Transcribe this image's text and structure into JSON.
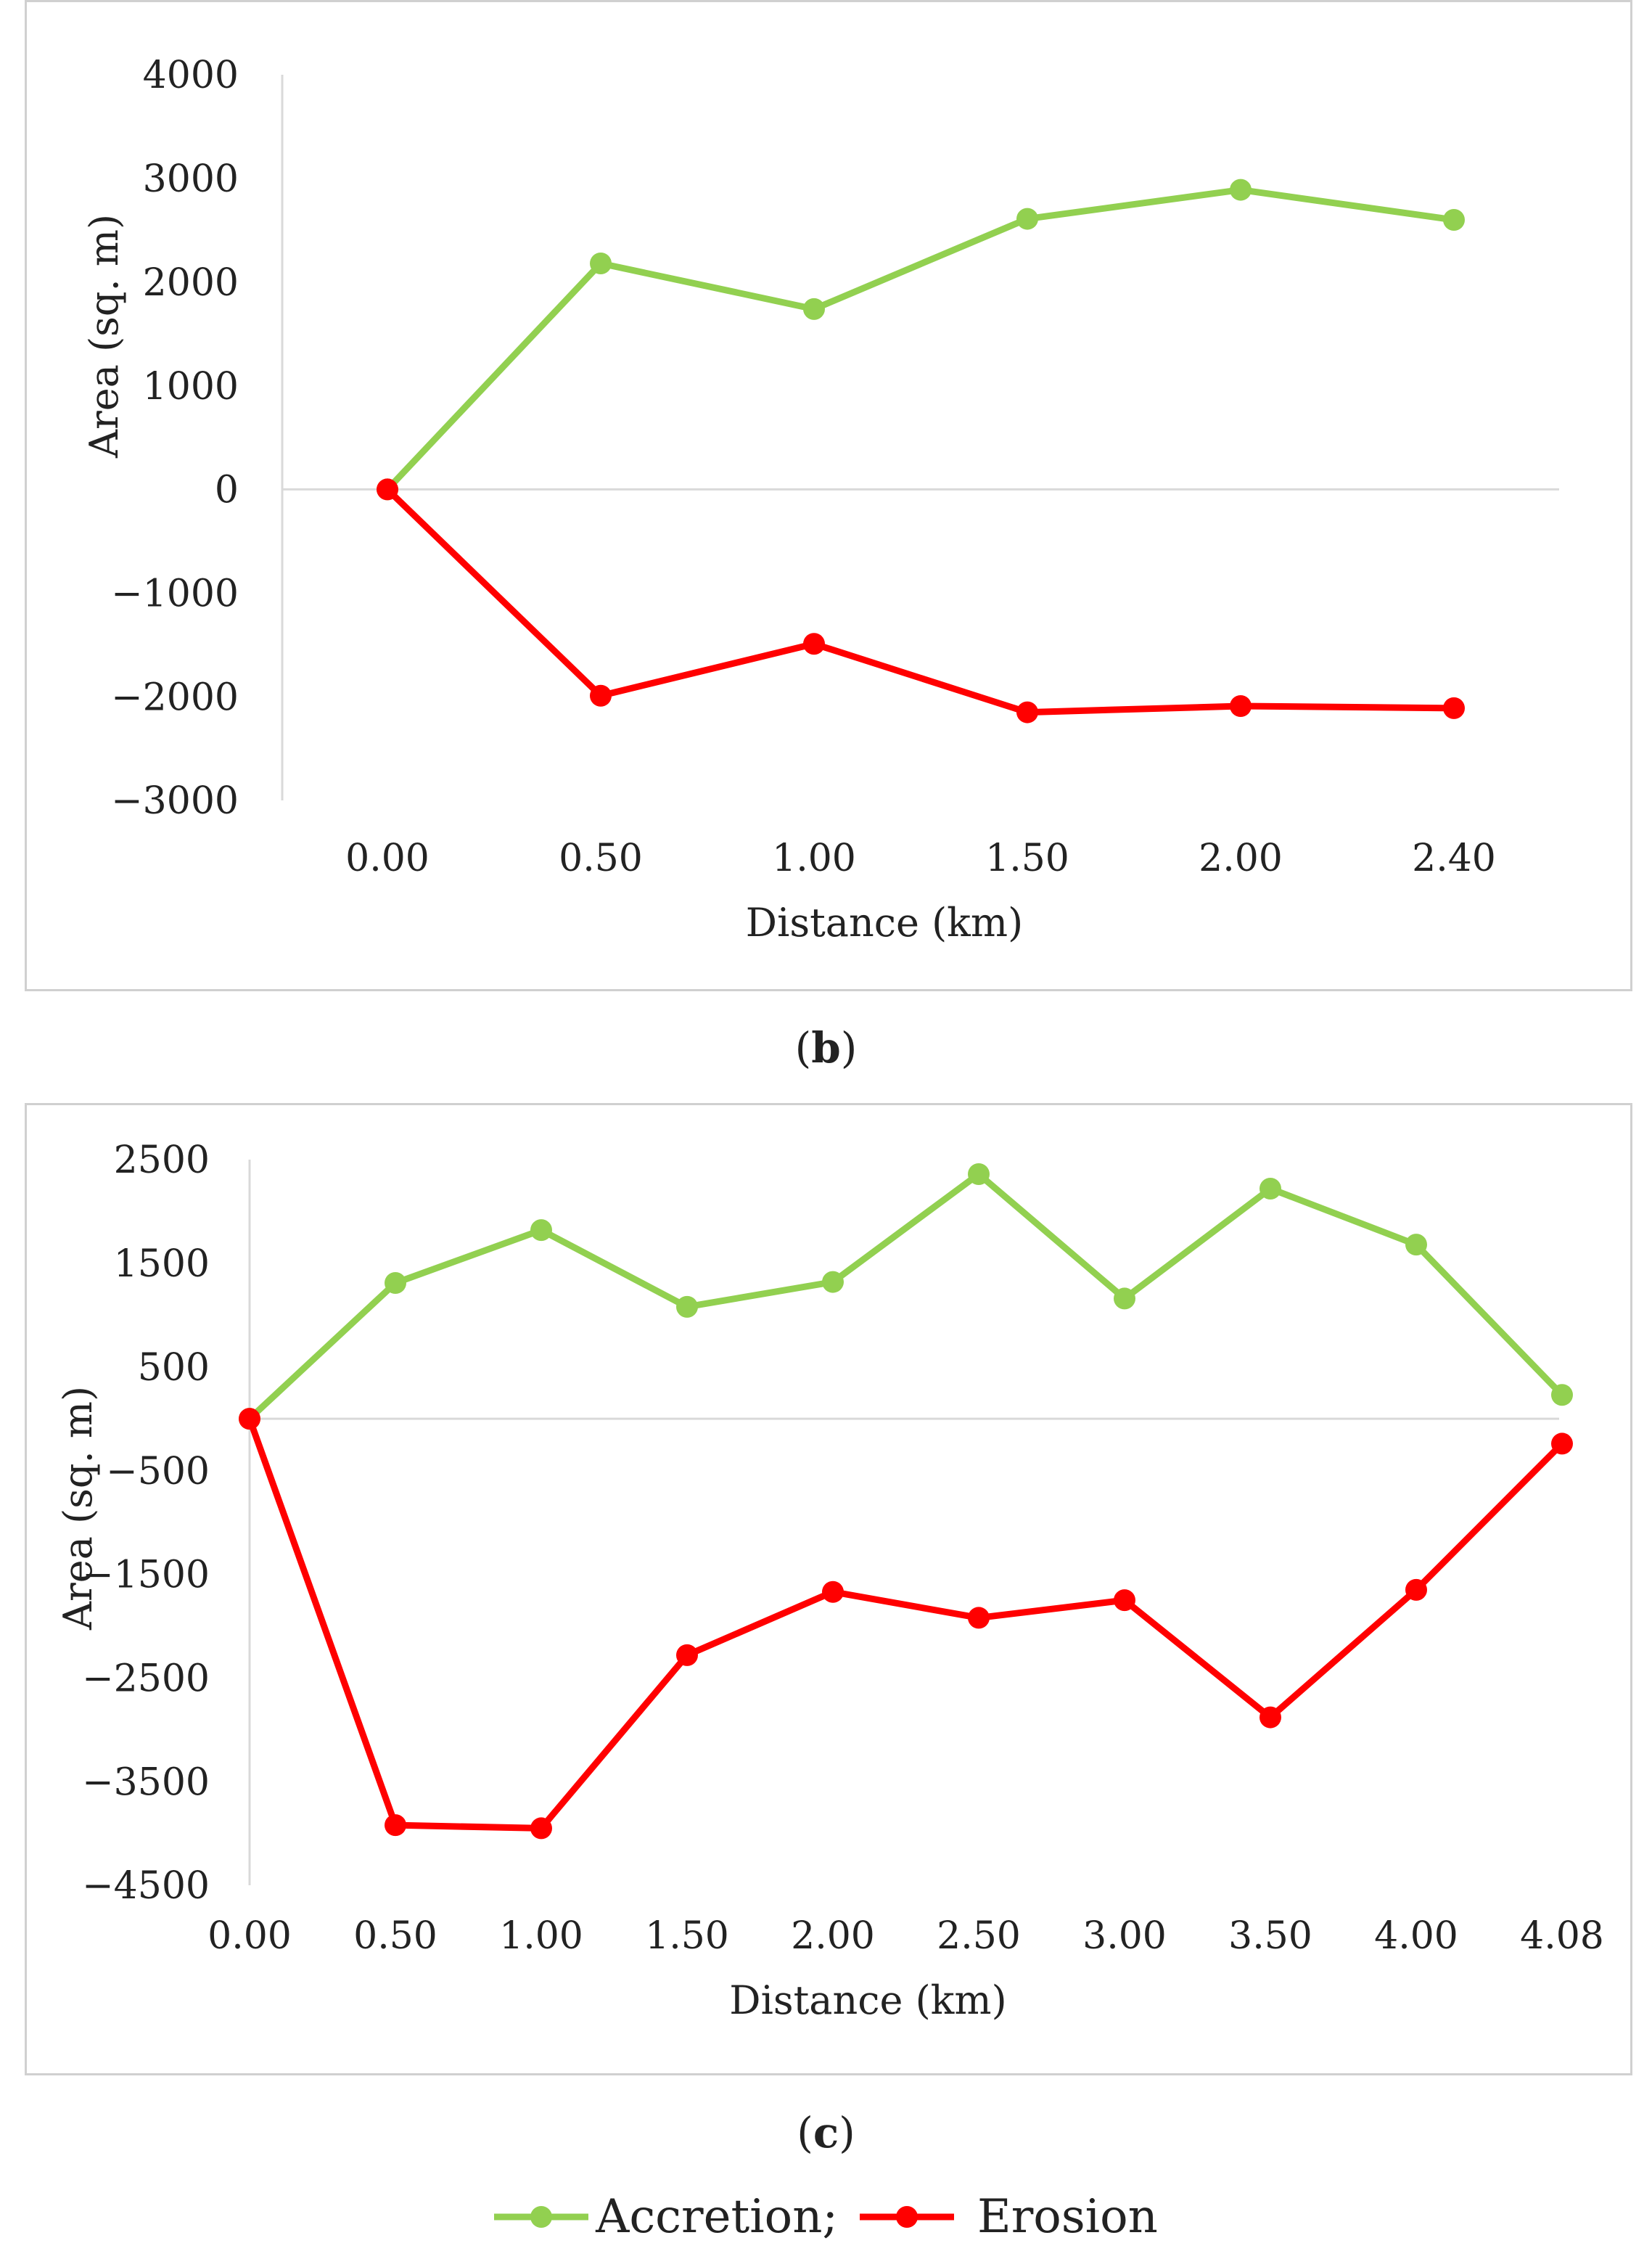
{
  "colors": {
    "accretion": "#92d050",
    "erosion": "#ff0000",
    "axis": "#d9d9d9",
    "text": "#222222"
  },
  "captions": {
    "b": {
      "open": "(",
      "letter": "b",
      "close": ")"
    },
    "c": {
      "open": "(",
      "letter": "c",
      "close": ")"
    }
  },
  "legend": {
    "accretion_label": "Accretion;",
    "erosion_label": "Erosion"
  },
  "chart_data": [
    {
      "id": "b",
      "type": "line",
      "title": "",
      "xlabel": "Distance (km)",
      "ylabel": "Area (sq. m)",
      "categories": [
        "0.00",
        "0.50",
        "1.00",
        "1.50",
        "2.00",
        "2.40"
      ],
      "ylim": [
        -3000,
        4000
      ],
      "yticks": [
        4000,
        3000,
        2000,
        1000,
        0,
        -1000,
        -2000,
        -3000
      ],
      "ytick_labels": [
        "4000",
        "3000",
        "2000",
        "1000",
        "0",
        "−1000",
        "−2000",
        "−3000"
      ],
      "series": [
        {
          "name": "Accretion",
          "values": [
            0,
            2180,
            1740,
            2610,
            2890,
            2600
          ]
        },
        {
          "name": "Erosion",
          "values": [
            0,
            -1990,
            -1490,
            -2150,
            -2090,
            -2110
          ]
        }
      ]
    },
    {
      "id": "c",
      "type": "line",
      "title": "",
      "xlabel": "Distance (km)",
      "ylabel": "Area (sq. m)",
      "categories": [
        "0.00",
        "0.50",
        "1.00",
        "1.50",
        "2.00",
        "2.50",
        "3.00",
        "3.50",
        "4.00",
        "4.08"
      ],
      "ylim": [
        -4500,
        2500
      ],
      "yticks": [
        2500,
        1500,
        500,
        -500,
        -1500,
        -2500,
        -3500,
        -4500
      ],
      "ytick_labels": [
        "2500",
        "1500",
        "500",
        "−500",
        "−1500",
        "−2500",
        "−3500",
        "−4500"
      ],
      "series": [
        {
          "name": "Accretion",
          "values": [
            0,
            1310,
            1820,
            1080,
            1320,
            2360,
            1160,
            2220,
            1680,
            230
          ]
        },
        {
          "name": "Erosion",
          "values": [
            0,
            -3920,
            -3950,
            -2280,
            -1670,
            -1920,
            -1750,
            -2880,
            -1650,
            -240
          ]
        }
      ]
    }
  ]
}
